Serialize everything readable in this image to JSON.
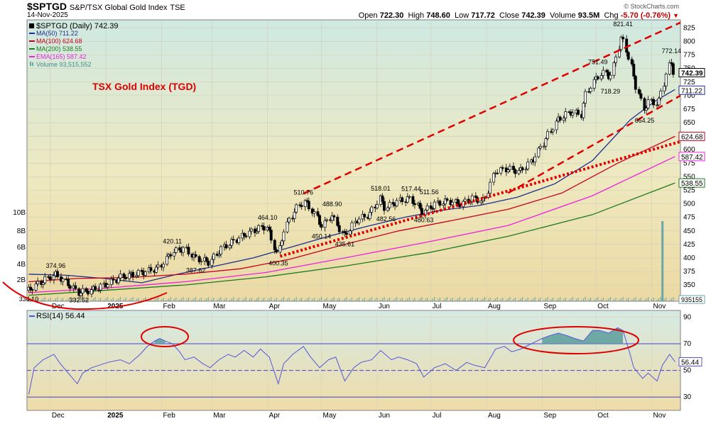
{
  "header": {
    "symbol": "$SPTGD",
    "name": "S&P/TSX Global Gold Index",
    "exchange": "TSE",
    "date": "14-Nov-2025",
    "open_label": "Open",
    "open": "722.30",
    "high_label": "High",
    "high": "748.60",
    "low_label": "Low",
    "low": "717.72",
    "close_label": "Close",
    "close": "742.39",
    "volume_label": "Volume",
    "volume": "93.5M",
    "chg_label": "Chg",
    "chg": "-5.70 (-0.76%)",
    "brand": "© StockCharts.com"
  },
  "legend": {
    "main": "$SPTGD (Daily) 742.39",
    "ma50": "MA(50) 711.22",
    "ma100": "MA(100) 624.68",
    "ma200": "MA(200) 538.55",
    "ema165": "EMA(165) 587.42",
    "volume": "Volume 93,515,552",
    "rsi": "RSI(14) 56.44"
  },
  "annotation_title": "TSX Gold Index (TGD)",
  "colors": {
    "candle": "#000000",
    "ma50": "#1f2e8c",
    "ma100": "#c8001e",
    "ma200": "#1f7a1f",
    "ema165": "#ee22dd",
    "volume": "#6aa6a6",
    "rsi_line": "#5555dd",
    "rsi_fill": "#5a9e9e",
    "annotation_red": "#e00000"
  },
  "chart_data": [
    {
      "type": "line",
      "subtype": "candlestick",
      "title": "$SPTGD (Daily)",
      "x_tick_labels": [
        "Dec",
        "2025",
        "Feb",
        "Mar",
        "Apr",
        "May",
        "Jun",
        "Jul",
        "Aug",
        "Sep",
        "Oct",
        "Nov"
      ],
      "price_axis_ticks": [
        325,
        350,
        375,
        400,
        425,
        450,
        475,
        500,
        525,
        550,
        575,
        600,
        625,
        650,
        675,
        700,
        725,
        750,
        775,
        800,
        825
      ],
      "ylim": [
        320,
        840
      ],
      "volume_axis_ticks": [
        "2B",
        "4B",
        "6B",
        "8B",
        "10B"
      ],
      "volume_tag": "935155",
      "last_value_tags": [
        "742.39",
        "711.22",
        "624.68",
        "587.42",
        "538.55"
      ],
      "price_labels": [
        {
          "date": "2024-11-19",
          "value": 334.1,
          "label": "334.10"
        },
        {
          "date": "2024-12-04",
          "value": 374.96,
          "label": "374.96"
        },
        {
          "date": "2024-12-17",
          "value": 332.52,
          "label": "332.52"
        },
        {
          "date": "2025-02-20",
          "value": 387.62,
          "label": "387.62"
        },
        {
          "date": "2025-02-07",
          "value": 420.11,
          "label": "420.11"
        },
        {
          "date": "2025-04-01",
          "value": 464.1,
          "label": "464.10"
        },
        {
          "date": "2025-04-07",
          "value": 400.35,
          "label": "400.35"
        },
        {
          "date": "2025-04-21",
          "value": 510.76,
          "label": "510.76"
        },
        {
          "date": "2025-05-01",
          "value": 450.14,
          "label": "450.14"
        },
        {
          "date": "2025-05-07",
          "value": 488.9,
          "label": "488.90"
        },
        {
          "date": "2025-05-14",
          "value": 435.61,
          "label": "435.61"
        },
        {
          "date": "2025-06-03",
          "value": 518.01,
          "label": "518.01"
        },
        {
          "date": "2025-06-06",
          "value": 482.56,
          "label": "482.56"
        },
        {
          "date": "2025-06-20",
          "value": 517.44,
          "label": "517.44"
        },
        {
          "date": "2025-06-30",
          "value": 511.56,
          "label": "511.56"
        },
        {
          "date": "2025-06-27",
          "value": 480.63,
          "label": "480.63"
        },
        {
          "date": "2025-10-02",
          "value": 751.49,
          "label": "751.49"
        },
        {
          "date": "2025-10-16",
          "value": 821.41,
          "label": "821.41"
        },
        {
          "date": "2025-10-09",
          "value": 718.29,
          "label": "718.29"
        },
        {
          "date": "2025-10-28",
          "value": 664.25,
          "label": "664.25"
        },
        {
          "date": "2025-11-12",
          "value": 772.14,
          "label": "772.14"
        }
      ],
      "close_series": {
        "name": "$SPTGD",
        "points": [
          [
            "2024-11-19",
            340
          ],
          [
            "2024-11-26",
            355
          ],
          [
            "2024-12-04",
            370
          ],
          [
            "2024-12-10",
            356
          ],
          [
            "2024-12-17",
            336
          ],
          [
            "2024-12-24",
            340
          ],
          [
            "2025-01-02",
            352
          ],
          [
            "2025-01-10",
            365
          ],
          [
            "2025-01-17",
            370
          ],
          [
            "2025-01-24",
            375
          ],
          [
            "2025-01-31",
            382
          ],
          [
            "2025-02-07",
            410
          ],
          [
            "2025-02-14",
            418
          ],
          [
            "2025-02-20",
            400
          ],
          [
            "2025-02-28",
            392
          ],
          [
            "2025-03-07",
            418
          ],
          [
            "2025-03-14",
            432
          ],
          [
            "2025-03-21",
            445
          ],
          [
            "2025-03-28",
            455
          ],
          [
            "2025-04-01",
            458
          ],
          [
            "2025-04-07",
            405
          ],
          [
            "2025-04-11",
            455
          ],
          [
            "2025-04-17",
            490
          ],
          [
            "2025-04-22",
            505
          ],
          [
            "2025-04-28",
            480
          ],
          [
            "2025-05-02",
            458
          ],
          [
            "2025-05-07",
            480
          ],
          [
            "2025-05-14",
            440
          ],
          [
            "2025-05-21",
            470
          ],
          [
            "2025-05-28",
            480
          ],
          [
            "2025-06-03",
            510
          ],
          [
            "2025-06-06",
            492
          ],
          [
            "2025-06-13",
            505
          ],
          [
            "2025-06-20",
            510
          ],
          [
            "2025-06-27",
            485
          ],
          [
            "2025-07-04",
            500
          ],
          [
            "2025-07-11",
            505
          ],
          [
            "2025-07-18",
            500
          ],
          [
            "2025-07-25",
            510
          ],
          [
            "2025-07-31",
            505
          ],
          [
            "2025-08-06",
            560
          ],
          [
            "2025-08-13",
            565
          ],
          [
            "2025-08-20",
            560
          ],
          [
            "2025-08-27",
            580
          ],
          [
            "2025-09-03",
            618
          ],
          [
            "2025-09-10",
            655
          ],
          [
            "2025-09-17",
            670
          ],
          [
            "2025-09-23",
            665
          ],
          [
            "2025-09-26",
            705
          ],
          [
            "2025-10-02",
            735
          ],
          [
            "2025-10-08",
            745
          ],
          [
            "2025-10-09",
            725
          ],
          [
            "2025-10-13",
            780
          ],
          [
            "2025-10-16",
            810
          ],
          [
            "2025-10-20",
            765
          ],
          [
            "2025-10-24",
            715
          ],
          [
            "2025-10-28",
            675
          ],
          [
            "2025-10-31",
            690
          ],
          [
            "2025-11-05",
            685
          ],
          [
            "2025-11-10",
            745
          ],
          [
            "2025-11-12",
            765
          ],
          [
            "2025-11-14",
            742.39
          ]
        ]
      },
      "series": [
        {
          "name": "MA(50)",
          "points": [
            [
              "2024-11-19",
              370
            ],
            [
              "2024-12-10",
              368
            ],
            [
              "2024-12-31",
              362
            ],
            [
              "2025-01-21",
              354
            ],
            [
              "2025-02-10",
              370
            ],
            [
              "2025-03-03",
              385
            ],
            [
              "2025-03-24",
              400
            ],
            [
              "2025-04-14",
              420
            ],
            [
              "2025-05-05",
              440
            ],
            [
              "2025-05-26",
              458
            ],
            [
              "2025-06-16",
              475
            ],
            [
              "2025-07-07",
              488
            ],
            [
              "2025-07-28",
              497
            ],
            [
              "2025-08-18",
              512
            ],
            [
              "2025-09-08",
              537
            ],
            [
              "2025-09-29",
              580
            ],
            [
              "2025-10-20",
              655
            ],
            [
              "2025-11-03",
              690
            ],
            [
              "2025-11-14",
              711.22
            ]
          ]
        },
        {
          "name": "MA(100)",
          "points": [
            [
              "2024-11-19",
              356
            ],
            [
              "2024-12-16",
              362
            ],
            [
              "2025-01-15",
              364
            ],
            [
              "2025-02-14",
              370
            ],
            [
              "2025-03-17",
              380
            ],
            [
              "2025-04-14",
              398
            ],
            [
              "2025-05-14",
              425
            ],
            [
              "2025-06-13",
              450
            ],
            [
              "2025-07-14",
              470
            ],
            [
              "2025-08-13",
              490
            ],
            [
              "2025-09-12",
              520
            ],
            [
              "2025-10-13",
              575
            ],
            [
              "2025-11-14",
              624.68
            ]
          ]
        },
        {
          "name": "MA(200)",
          "points": [
            [
              "2024-11-19",
              331
            ],
            [
              "2024-12-31",
              340
            ],
            [
              "2025-02-14",
              350
            ],
            [
              "2025-03-31",
              365
            ],
            [
              "2025-05-14",
              385
            ],
            [
              "2025-06-30",
              410
            ],
            [
              "2025-08-13",
              440
            ],
            [
              "2025-09-29",
              480
            ],
            [
              "2025-11-14",
              538.55
            ]
          ]
        },
        {
          "name": "EMA(165)",
          "points": [
            [
              "2024-11-19",
              336
            ],
            [
              "2024-12-31",
              344
            ],
            [
              "2025-02-14",
              356
            ],
            [
              "2025-03-31",
              373
            ],
            [
              "2025-05-14",
              400
            ],
            [
              "2025-06-30",
              430
            ],
            [
              "2025-08-13",
              460
            ],
            [
              "2025-09-29",
              515
            ],
            [
              "2025-11-14",
              587.42
            ]
          ]
        }
      ],
      "volume_spike": {
        "date": "2025-11-07",
        "value": "9.5B"
      },
      "trend_lines": [
        {
          "style": "dashed",
          "from": [
            "2025-04-21",
            519
          ],
          "to": [
            "2025-11-17",
            835
          ]
        },
        {
          "style": "dashed",
          "from": [
            "2025-08-13",
            520
          ],
          "to": [
            "2025-11-17",
            700
          ]
        },
        {
          "style": "dotted",
          "from": [
            "2025-04-08",
            403
          ],
          "to": [
            "2025-11-17",
            615
          ]
        }
      ]
    },
    {
      "type": "line",
      "title": "RSI(14)",
      "x_tick_labels": [
        "Dec",
        "2025",
        "Feb",
        "Mar",
        "Apr",
        "May",
        "Jun",
        "Jul",
        "Aug",
        "Sep",
        "Oct",
        "Nov"
      ],
      "y_ticks": [
        30,
        50,
        70,
        90
      ],
      "ylim": [
        20,
        95
      ],
      "overbought": 70,
      "oversold": 30,
      "midline": 50,
      "last_value": "56.44",
      "points": [
        [
          "2024-11-19",
          32
        ],
        [
          "2024-11-22",
          52
        ],
        [
          "2024-11-27",
          58
        ],
        [
          "2024-12-03",
          62
        ],
        [
          "2024-12-06",
          56
        ],
        [
          "2024-12-11",
          48
        ],
        [
          "2024-12-16",
          40
        ],
        [
          "2024-12-19",
          48
        ],
        [
          "2024-12-24",
          52
        ],
        [
          "2025-01-02",
          56
        ],
        [
          "2025-01-09",
          58
        ],
        [
          "2025-01-14",
          55
        ],
        [
          "2025-01-20",
          62
        ],
        [
          "2025-01-24",
          68
        ],
        [
          "2025-01-28",
          72
        ],
        [
          "2025-01-31",
          74
        ],
        [
          "2025-02-03",
          72
        ],
        [
          "2025-02-07",
          70
        ],
        [
          "2025-02-11",
          64
        ],
        [
          "2025-02-14",
          58
        ],
        [
          "2025-02-19",
          60
        ],
        [
          "2025-02-24",
          55
        ],
        [
          "2025-02-28",
          52
        ],
        [
          "2025-03-05",
          58
        ],
        [
          "2025-03-10",
          62
        ],
        [
          "2025-03-14",
          60
        ],
        [
          "2025-03-19",
          65
        ],
        [
          "2025-03-24",
          60
        ],
        [
          "2025-03-28",
          66
        ],
        [
          "2025-04-02",
          60
        ],
        [
          "2025-04-07",
          40
        ],
        [
          "2025-04-10",
          55
        ],
        [
          "2025-04-15",
          62
        ],
        [
          "2025-04-21",
          68
        ],
        [
          "2025-04-25",
          60
        ],
        [
          "2025-04-30",
          52
        ],
        [
          "2025-05-05",
          58
        ],
        [
          "2025-05-09",
          60
        ],
        [
          "2025-05-14",
          42
        ],
        [
          "2025-05-19",
          52
        ],
        [
          "2025-05-23",
          56
        ],
        [
          "2025-05-29",
          58
        ],
        [
          "2025-06-03",
          65
        ],
        [
          "2025-06-09",
          58
        ],
        [
          "2025-06-13",
          60
        ],
        [
          "2025-06-18",
          58
        ],
        [
          "2025-06-23",
          55
        ],
        [
          "2025-06-27",
          45
        ],
        [
          "2025-07-03",
          52
        ],
        [
          "2025-07-09",
          55
        ],
        [
          "2025-07-15",
          50
        ],
        [
          "2025-07-21",
          56
        ],
        [
          "2025-07-25",
          54
        ],
        [
          "2025-07-31",
          52
        ],
        [
          "2025-08-06",
          66
        ],
        [
          "2025-08-11",
          68
        ],
        [
          "2025-08-15",
          64
        ],
        [
          "2025-08-20",
          66
        ],
        [
          "2025-08-26",
          70
        ],
        [
          "2025-09-01",
          74
        ],
        [
          "2025-09-05",
          76
        ],
        [
          "2025-09-10",
          78
        ],
        [
          "2025-09-15",
          76
        ],
        [
          "2025-09-19",
          74
        ],
        [
          "2025-09-24",
          72
        ],
        [
          "2025-09-29",
          80
        ],
        [
          "2025-10-03",
          80
        ],
        [
          "2025-10-08",
          78
        ],
        [
          "2025-10-13",
          82
        ],
        [
          "2025-10-16",
          80
        ],
        [
          "2025-10-20",
          62
        ],
        [
          "2025-10-22",
          52
        ],
        [
          "2025-10-27",
          44
        ],
        [
          "2025-10-30",
          48
        ],
        [
          "2025-11-04",
          42
        ],
        [
          "2025-11-07",
          54
        ],
        [
          "2025-11-11",
          62
        ],
        [
          "2025-11-14",
          56.44
        ]
      ]
    }
  ]
}
